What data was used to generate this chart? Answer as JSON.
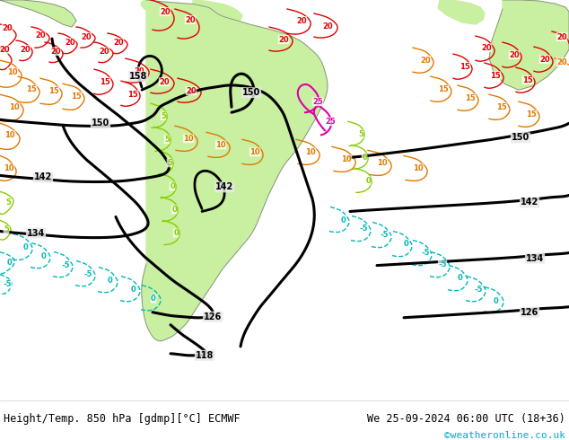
{
  "title_left": "Height/Temp. 850 hPa [gdmp][°C] ECMWF",
  "title_right": "We 25-09-2024 06:00 UTC (18+36)",
  "watermark": "©weatheronline.co.uk",
  "ocean_color": "#e8e8e8",
  "land_sa_color": "#c8f0a0",
  "land_na_color": "#c8f0a0",
  "land_af_color": "#c8f0a0",
  "border_color": "#aaaaaa",
  "fig_width": 6.34,
  "fig_height": 4.9,
  "dpi": 100,
  "watermark_color": "#00aacc",
  "bottom_bg": "#ffffff"
}
